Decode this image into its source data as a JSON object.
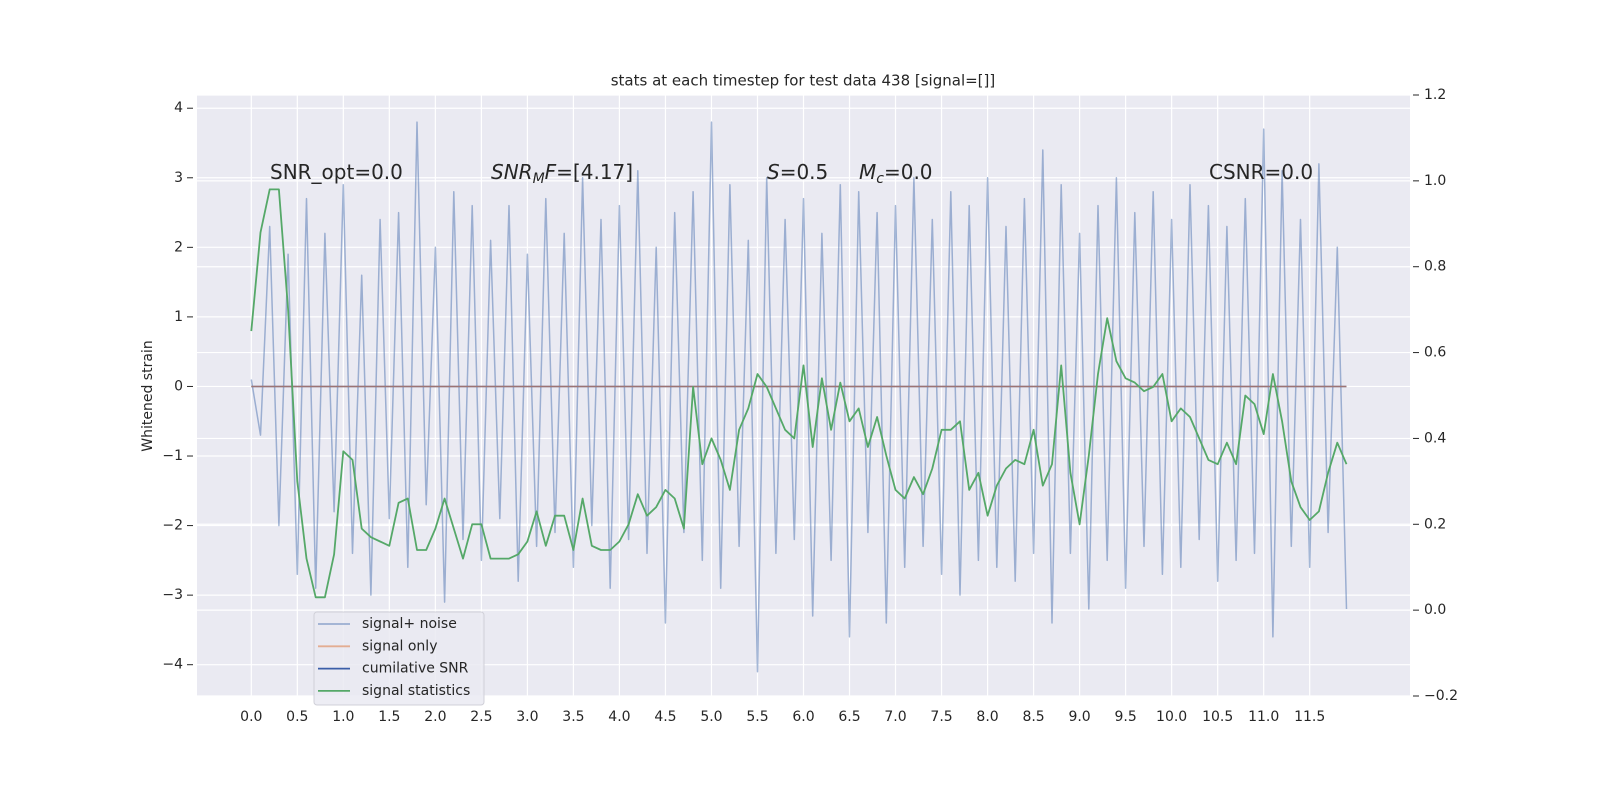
{
  "chart_data": {
    "type": "line",
    "title": "stats at each timestep for test data 438 [signal=[]]",
    "y_label": "Whitened strain",
    "x": [
      0,
      0.1,
      0.2,
      0.3,
      0.4,
      0.5,
      0.6,
      0.7,
      0.8,
      0.9,
      1,
      1.1,
      1.2,
      1.3,
      1.4,
      1.5,
      1.6,
      1.7,
      1.8,
      1.9,
      2,
      2.1,
      2.2,
      2.3,
      2.4,
      2.5,
      2.6,
      2.7,
      2.8,
      2.9,
      3,
      3.1,
      3.2,
      3.3,
      3.4,
      3.5,
      3.6,
      3.7,
      3.8,
      3.9,
      4,
      4.1,
      4.2,
      4.3,
      4.4,
      4.5,
      4.6,
      4.7,
      4.8,
      4.9,
      5,
      5.1,
      5.2,
      5.3,
      5.4,
      5.5,
      5.6,
      5.7,
      5.8,
      5.9,
      6,
      6.1,
      6.2,
      6.3,
      6.4,
      6.5,
      6.6,
      6.7,
      6.8,
      6.9,
      7,
      7.1,
      7.2,
      7.3,
      7.4,
      7.5,
      7.6,
      7.7,
      7.8,
      7.9,
      8,
      8.1,
      8.2,
      8.3,
      8.4,
      8.5,
      8.6,
      8.7,
      8.8,
      8.9,
      9,
      9.1,
      9.2,
      9.3,
      9.4,
      9.5,
      9.6,
      9.7,
      9.8,
      9.9,
      10,
      10.1,
      10.2,
      10.3,
      10.4,
      10.5,
      10.6,
      10.7,
      10.8,
      10.9,
      11,
      11.1,
      11.2,
      11.3,
      11.4,
      11.5,
      11.6,
      11.7,
      11.8,
      11.9
    ],
    "series": [
      {
        "name": "signal+ noise",
        "color": "#4c72b0",
        "opacity": 0.5,
        "values": [
          0.1,
          -0.7,
          2.3,
          -2.0,
          1.9,
          -2.7,
          2.7,
          -2.9,
          2.2,
          -1.8,
          2.9,
          -2.4,
          1.6,
          -3.0,
          2.4,
          -1.9,
          2.5,
          -2.6,
          3.8,
          -1.7,
          2.0,
          -3.1,
          2.8,
          -2.2,
          2.6,
          -2.5,
          2.1,
          -1.9,
          2.6,
          -2.8,
          1.9,
          -2.3,
          2.7,
          -2.1,
          2.2,
          -2.6,
          3.0,
          -2.0,
          2.4,
          -2.9,
          2.6,
          -2.2,
          3.1,
          -2.4,
          2.0,
          -3.4,
          2.5,
          -2.1,
          2.8,
          -2.5,
          3.8,
          -2.9,
          2.9,
          -2.3,
          2.1,
          -4.1,
          3.0,
          -2.4,
          2.4,
          -2.2,
          2.7,
          -3.3,
          2.2,
          -2.5,
          2.9,
          -3.6,
          2.8,
          -2.1,
          2.5,
          -3.4,
          2.6,
          -2.6,
          3.0,
          -2.3,
          2.4,
          -2.7,
          2.8,
          -3.0,
          2.6,
          -2.5,
          3.0,
          -2.6,
          2.3,
          -2.8,
          2.7,
          -2.4,
          3.4,
          -3.4,
          2.9,
          -2.4,
          2.2,
          -3.2,
          2.6,
          -2.5,
          3.0,
          -2.9,
          2.5,
          -2.3,
          2.8,
          -2.7,
          2.4,
          -2.6,
          2.9,
          -2.2,
          2.6,
          -2.8,
          2.3,
          -2.5,
          2.7,
          -2.4,
          3.7,
          -3.6,
          3.1,
          -2.3,
          2.4,
          -2.6,
          3.2,
          -2.1,
          2.0,
          -3.2
        ]
      },
      {
        "name": "signal only",
        "color": "#dd8452",
        "opacity": 0.6,
        "x": [
          0,
          11.9
        ],
        "values": [
          0,
          0
        ]
      },
      {
        "name": "cumilative SNR",
        "color": "#3b5ea8",
        "opacity": 1,
        "x": [
          0,
          11.9
        ],
        "values": [
          0,
          0
        ],
        "hidden_under": true
      },
      {
        "name": "signal statistics",
        "color": "#55a868",
        "opacity": 1,
        "axis": "y2",
        "values": [
          0.65,
          0.88,
          0.98,
          0.98,
          0.7,
          0.3,
          0.12,
          0.03,
          0.03,
          0.13,
          0.37,
          0.35,
          0.19,
          0.17,
          0.16,
          0.15,
          0.25,
          0.26,
          0.14,
          0.14,
          0.19,
          0.26,
          0.19,
          0.12,
          0.2,
          0.2,
          0.12,
          0.12,
          0.12,
          0.13,
          0.16,
          0.23,
          0.15,
          0.22,
          0.22,
          0.14,
          0.26,
          0.15,
          0.14,
          0.14,
          0.16,
          0.2,
          0.27,
          0.22,
          0.24,
          0.28,
          0.26,
          0.19,
          0.52,
          0.34,
          0.4,
          0.35,
          0.28,
          0.42,
          0.47,
          0.55,
          0.52,
          0.47,
          0.42,
          0.4,
          0.57,
          0.38,
          0.54,
          0.42,
          0.53,
          0.44,
          0.47,
          0.38,
          0.45,
          0.36,
          0.28,
          0.26,
          0.31,
          0.27,
          0.33,
          0.42,
          0.42,
          0.44,
          0.28,
          0.32,
          0.22,
          0.29,
          0.33,
          0.35,
          0.34,
          0.42,
          0.29,
          0.34,
          0.57,
          0.32,
          0.2,
          0.36,
          0.55,
          0.68,
          0.58,
          0.54,
          0.53,
          0.51,
          0.52,
          0.55,
          0.44,
          0.47,
          0.45,
          0.4,
          0.35,
          0.34,
          0.39,
          0.34,
          0.5,
          0.48,
          0.41,
          0.55,
          0.44,
          0.3,
          0.24,
          0.21,
          0.23,
          0.32,
          0.39,
          0.34
        ]
      }
    ],
    "xlim": [
      -0.59,
      12.59
    ],
    "xticks": [
      {
        "value": 0,
        "label": "0.0"
      },
      0.5,
      {
        "value": 1,
        "label": "1.0"
      },
      1.5,
      {
        "value": 2,
        "label": "2.0"
      },
      2.5,
      {
        "value": 3,
        "label": "3.0"
      },
      3.5,
      {
        "value": 4,
        "label": "4.0"
      },
      4.5,
      {
        "value": 5,
        "label": "5.0"
      },
      5.5,
      {
        "value": 6,
        "label": "6.0"
      },
      6.5,
      {
        "value": 7,
        "label": "7.0"
      },
      7.5,
      {
        "value": 8,
        "label": "8.0"
      },
      8.5,
      {
        "value": 9,
        "label": "9.0"
      },
      9.5,
      {
        "value": 10,
        "label": "10.0"
      },
      10.5,
      {
        "value": 11,
        "label": "11.0"
      },
      11.5
    ],
    "ylim": [
      -4.45,
      4.19
    ],
    "yticks": [
      {
        "value": -4,
        "label": "−4"
      },
      {
        "value": -3,
        "label": "−3"
      },
      {
        "value": -2,
        "label": "−2"
      },
      {
        "value": -1,
        "label": "−1"
      },
      0,
      1,
      2,
      3,
      4
    ],
    "y2lim": [
      -0.2,
      1.2
    ],
    "y2ticks": [
      {
        "value": -0.2,
        "label": "−0.2"
      },
      {
        "value": 0,
        "label": "0.0"
      },
      0.2,
      0.4,
      0.6,
      0.8,
      {
        "value": 1,
        "label": "1.0"
      },
      1.2
    ],
    "grid": true,
    "legend": "lower left",
    "annotations": [
      [
        {
          "t": "SNR_opt=0.0"
        }
      ],
      [
        {
          "t": "SNR",
          "i": true
        },
        {
          "t": "M",
          "i": true,
          "sub": true
        },
        {
          "t": "F",
          "i": true
        },
        {
          "t": "=[4.17]"
        }
      ],
      [
        {
          "t": "S",
          "i": true
        },
        {
          "t": "=0.5"
        }
      ],
      [
        {
          "t": "M",
          "i": true
        },
        {
          "t": "c",
          "i": true,
          "sub": true
        },
        {
          "t": "=0.0"
        }
      ],
      [
        {
          "t": "CSNR=0.0"
        }
      ]
    ]
  }
}
